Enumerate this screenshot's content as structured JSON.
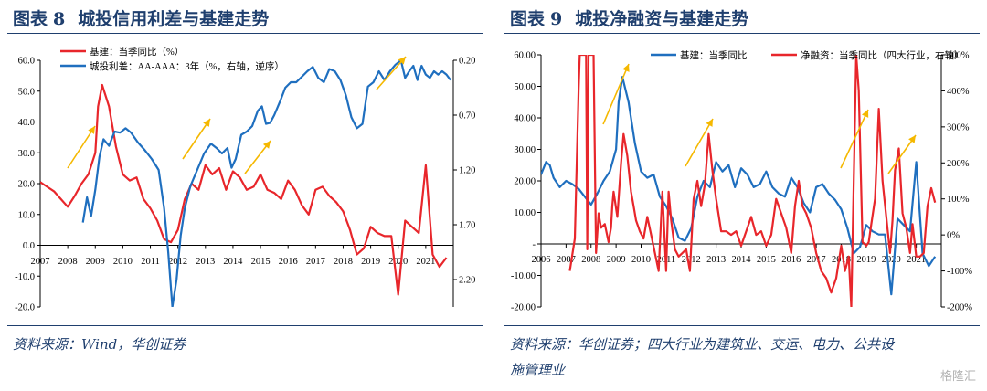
{
  "figures": [
    {
      "label": "图表",
      "number": "8",
      "title": "城投信用利差与基建走势",
      "source": "资料来源：Wind，华创证券"
    },
    {
      "label": "图表",
      "number": "9",
      "title": "城投净融资与基建走势",
      "source_line1": "资料来源：华创证券；四大行业为建筑业、交运、电力、公共设",
      "source_line2": "施管理业"
    }
  ],
  "watermark": "格隆汇",
  "chart_data": [
    {
      "type": "line",
      "title": "城投信用利差与基建走势",
      "x_ticks": [
        "2007",
        "2008",
        "2009",
        "2010",
        "2011",
        "2012",
        "2013",
        "2014",
        "2015",
        "2016",
        "2017",
        "2018",
        "2019",
        "2020",
        "2021"
      ],
      "left_axis": {
        "ylim": [
          -20,
          60
        ],
        "ticks": [
          "-20.0",
          "-10.0",
          "0.0",
          "10.0",
          "20.0",
          "30.0",
          "40.0",
          "50.0",
          "60.0"
        ]
      },
      "right_axis": {
        "ylim": [
          2.45,
          0.2
        ],
        "inverted": true,
        "ticks": [
          "0.20",
          "0.70",
          "1.20",
          "1.70",
          "2.20"
        ]
      },
      "series": [
        {
          "name": "基建：当季同比（%）",
          "axis": "left",
          "color": "#e8262b",
          "x": [
            2007,
            2007.25,
            2007.5,
            2007.75,
            2008,
            2008.25,
            2008.5,
            2008.75,
            2009,
            2009.1,
            2009.25,
            2009.5,
            2009.75,
            2010,
            2010.25,
            2010.5,
            2010.75,
            2011,
            2011.25,
            2011.5,
            2011.75,
            2012,
            2012.25,
            2012.5,
            2012.75,
            2013,
            2013.25,
            2013.5,
            2013.75,
            2014,
            2014.25,
            2014.5,
            2014.75,
            2015,
            2015.25,
            2015.5,
            2015.75,
            2016,
            2016.25,
            2016.5,
            2016.75,
            2017,
            2017.25,
            2017.5,
            2017.75,
            2018,
            2018.25,
            2018.5,
            2018.75,
            2019,
            2019.25,
            2019.5,
            2019.75,
            2020,
            2020.25,
            2020.5,
            2020.75,
            2021,
            2021.25,
            2021.5,
            2021.75
          ],
          "values": [
            20.5,
            19,
            17.5,
            15,
            12.5,
            16,
            20,
            23,
            30,
            45,
            52,
            45,
            32,
            23,
            21,
            22,
            15,
            12,
            8,
            2,
            1,
            5,
            15,
            20,
            18,
            26,
            23,
            25,
            18,
            24,
            22,
            18,
            19,
            23,
            18,
            17,
            15,
            21,
            18,
            13,
            10,
            18,
            19,
            16,
            14,
            11,
            5,
            -3,
            -1,
            6,
            4,
            3,
            3,
            -16,
            8,
            6,
            4,
            26,
            -3,
            -7,
            -4
          ]
        },
        {
          "name": "城投利差：AA-AAA：3年（%，右轴，逆序）",
          "axis": "right",
          "color": "#1f6fbf",
          "x": [
            2008.55,
            2008.7,
            2008.85,
            2009,
            2009.15,
            2009.3,
            2009.5,
            2009.7,
            2009.9,
            2010.1,
            2010.3,
            2010.55,
            2010.8,
            2011.05,
            2011.3,
            2011.5,
            2011.65,
            2011.8,
            2011.95,
            2012.1,
            2012.25,
            2012.45,
            2012.7,
            2012.95,
            2013.2,
            2013.4,
            2013.6,
            2013.8,
            2013.95,
            2014.1,
            2014.3,
            2014.5,
            2014.7,
            2014.9,
            2015.05,
            2015.2,
            2015.35,
            2015.5,
            2015.7,
            2015.9,
            2016.1,
            2016.3,
            2016.5,
            2016.7,
            2016.9,
            2017.1,
            2017.3,
            2017.5,
            2017.7,
            2017.9,
            2018.1,
            2018.3,
            2018.5,
            2018.7,
            2018.9,
            2019.1,
            2019.3,
            2019.5,
            2019.7,
            2019.9,
            2020.1,
            2020.25,
            2020.4,
            2020.55,
            2020.7,
            2020.85,
            2021,
            2021.15,
            2021.3,
            2021.45,
            2021.6,
            2021.75,
            2021.9
          ],
          "values": [
            1.68,
            1.45,
            1.62,
            1.38,
            1.08,
            0.92,
            0.98,
            0.85,
            0.86,
            0.82,
            0.86,
            0.95,
            1.02,
            1.1,
            1.2,
            1.55,
            1.95,
            2.45,
            2.2,
            1.8,
            1.55,
            1.35,
            1.2,
            1.05,
            0.96,
            1.0,
            1.05,
            1.0,
            1.18,
            1.1,
            0.88,
            0.85,
            0.8,
            0.66,
            0.62,
            0.78,
            0.77,
            0.7,
            0.58,
            0.45,
            0.4,
            0.4,
            0.35,
            0.3,
            0.26,
            0.36,
            0.4,
            0.28,
            0.3,
            0.38,
            0.52,
            0.72,
            0.82,
            0.78,
            0.44,
            0.4,
            0.3,
            0.38,
            0.3,
            0.24,
            0.2,
            0.36,
            0.3,
            0.25,
            0.38,
            0.25,
            0.33,
            0.36,
            0.3,
            0.33,
            0.3,
            0.33,
            0.38
          ]
        }
      ]
    },
    {
      "type": "line",
      "title": "城投净融资与基建走势",
      "x_ticks": [
        "2006",
        "2007",
        "2008",
        "2009",
        "2010",
        "2011",
        "2012",
        "2013",
        "2014",
        "2015",
        "2016",
        "2017",
        "2018",
        "2019",
        "2020",
        "2021"
      ],
      "left_axis": {
        "ylim": [
          -20,
          60
        ],
        "ticks": [
          "-20.00",
          "-10.00",
          "-",
          "10.00",
          "20.00",
          "30.00",
          "40.00",
          "50.00",
          "60.00"
        ]
      },
      "right_axis": {
        "ylim": [
          -200,
          500
        ],
        "ticks": [
          "-200%",
          "-100%",
          "0%",
          "100%",
          "200%",
          "300%",
          "400%",
          "500%"
        ]
      },
      "series": [
        {
          "name": "基建：当季同比",
          "axis": "left",
          "color": "#1f6fbf",
          "x": [
            2006,
            2006.2,
            2006.35,
            2006.5,
            2006.75,
            2007,
            2007.25,
            2007.5,
            2007.75,
            2008,
            2008.25,
            2008.5,
            2008.75,
            2009,
            2009.1,
            2009.25,
            2009.5,
            2009.75,
            2010,
            2010.25,
            2010.5,
            2010.75,
            2011,
            2011.25,
            2011.5,
            2011.75,
            2012,
            2012.25,
            2012.5,
            2012.75,
            2013,
            2013.25,
            2013.5,
            2013.75,
            2014,
            2014.25,
            2014.5,
            2014.75,
            2015,
            2015.25,
            2015.5,
            2015.75,
            2016,
            2016.25,
            2016.5,
            2016.75,
            2017,
            2017.25,
            2017.5,
            2017.75,
            2018,
            2018.25,
            2018.5,
            2018.75,
            2019,
            2019.25,
            2019.5,
            2019.75,
            2020,
            2020.25,
            2020.5,
            2020.75,
            2021,
            2021.25,
            2021.5,
            2021.75
          ],
          "values": [
            22,
            26,
            25,
            21,
            18,
            20,
            19,
            17.5,
            15,
            12.5,
            16,
            20,
            23,
            30,
            45,
            53,
            45,
            32,
            23,
            21,
            22,
            15,
            12,
            8,
            2,
            1,
            5,
            15,
            20,
            18,
            26,
            23,
            25,
            18,
            24,
            22,
            18,
            19,
            23,
            18,
            16,
            15,
            21,
            18,
            13,
            10,
            18,
            19,
            16,
            14,
            11,
            5,
            -3,
            -1,
            6,
            4,
            3,
            3,
            -16,
            8,
            6,
            4,
            26,
            -3,
            -7,
            -4
          ]
        },
        {
          "name": "净融资：当季同比（四大行业，右轴）",
          "axis": "right",
          "color": "#e8262b",
          "x": [
            2007.15,
            2007.35,
            2007.5,
            2007.55,
            2007.6,
            2007.8,
            2007.85,
            2007.9,
            2008.1,
            2008.2,
            2008.3,
            2008.4,
            2008.55,
            2008.7,
            2008.8,
            2008.85,
            2008.9,
            2009.05,
            2009.2,
            2009.3,
            2009.45,
            2009.6,
            2009.7,
            2009.8,
            2009.95,
            2010.1,
            2010.25,
            2010.4,
            2010.55,
            2010.7,
            2010.85,
            2011,
            2011.1,
            2011.2,
            2011.35,
            2011.5,
            2011.65,
            2011.8,
            2011.95,
            2012.1,
            2012.25,
            2012.4,
            2012.55,
            2012.7,
            2012.85,
            2013,
            2013.2,
            2013.4,
            2013.6,
            2013.8,
            2014,
            2014.2,
            2014.4,
            2014.6,
            2014.8,
            2015,
            2015.2,
            2015.4,
            2015.6,
            2015.8,
            2016,
            2016.15,
            2016.3,
            2016.45,
            2016.6,
            2016.8,
            2017,
            2017.2,
            2017.4,
            2017.6,
            2017.8,
            2018,
            2018.15,
            2018.3,
            2018.4,
            2018.5,
            2018.6,
            2018.7,
            2018.85,
            2019,
            2019.1,
            2019.2,
            2019.35,
            2019.5,
            2019.65,
            2019.8,
            2019.95,
            2020.05,
            2020.15,
            2020.3,
            2020.45,
            2020.6,
            2020.75,
            2020.85,
            2021,
            2021.15,
            2021.3,
            2021.45,
            2021.6,
            2021.75
          ],
          "values": [
            -100,
            -10,
            400,
            500,
            500,
            500,
            -40,
            500,
            500,
            -50,
            60,
            20,
            30,
            -20,
            20,
            80,
            120,
            50,
            200,
            280,
            220,
            120,
            80,
            40,
            10,
            -10,
            50,
            0,
            -50,
            -100,
            120,
            -100,
            120,
            40,
            -40,
            -60,
            -50,
            -40,
            -100,
            100,
            150,
            80,
            140,
            280,
            180,
            100,
            10,
            10,
            0,
            10,
            -30,
            10,
            50,
            0,
            10,
            -30,
            0,
            100,
            60,
            20,
            -50,
            80,
            150,
            80,
            60,
            20,
            -50,
            -100,
            -120,
            -160,
            -120,
            -30,
            -100,
            -60,
            -200,
            150,
            500,
            400,
            -20,
            -30,
            -20,
            30,
            100,
            350,
            150,
            50,
            -50,
            40,
            180,
            240,
            60,
            20,
            -50,
            30,
            -60,
            -60,
            -50,
            80,
            130,
            90
          ]
        }
      ]
    }
  ]
}
